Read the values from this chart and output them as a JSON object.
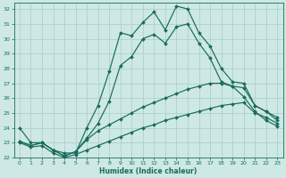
{
  "xlabel": "Humidex (Indice chaleur)",
  "background_color": "#cde8e5",
  "grid_color": "#a8ccc9",
  "line_color": "#1a6b5a",
  "xlim": [
    -0.5,
    23.5
  ],
  "ylim": [
    22,
    32.4
  ],
  "xticks": [
    0,
    1,
    2,
    3,
    4,
    5,
    6,
    7,
    8,
    9,
    10,
    11,
    12,
    13,
    14,
    15,
    16,
    17,
    18,
    19,
    20,
    21,
    22,
    23
  ],
  "yticks": [
    22,
    23,
    24,
    25,
    26,
    27,
    28,
    29,
    30,
    31,
    32
  ],
  "line1_x": [
    0,
    1,
    2,
    3,
    4,
    5,
    6,
    7,
    8,
    9,
    10,
    11,
    12,
    13,
    14,
    15,
    16,
    17,
    18,
    19,
    20,
    21,
    22,
    23
  ],
  "line1_y": [
    24.0,
    23.0,
    23.0,
    22.5,
    22.3,
    22.3,
    24.0,
    25.5,
    27.8,
    30.4,
    30.2,
    31.1,
    31.8,
    30.6,
    32.2,
    32.0,
    30.4,
    29.5,
    28.0,
    27.1,
    27.0,
    25.5,
    25.1,
    24.5
  ],
  "line2_x": [
    0,
    1,
    2,
    3,
    4,
    5,
    6,
    7,
    8,
    9,
    10,
    11,
    12,
    13,
    14,
    15,
    16,
    17,
    18,
    19,
    20,
    21,
    22,
    23
  ],
  "line2_y": [
    23.1,
    22.8,
    23.0,
    22.5,
    22.1,
    22.4,
    23.3,
    24.3,
    25.8,
    28.2,
    28.8,
    30.0,
    30.3,
    29.7,
    30.8,
    31.0,
    29.7,
    28.7,
    27.1,
    26.8,
    26.1,
    25.1,
    24.5,
    24.1
  ],
  "line3_x": [
    0,
    1,
    2,
    3,
    4,
    5,
    6,
    7,
    8,
    9,
    10,
    11,
    12,
    13,
    14,
    15,
    16,
    17,
    18,
    19,
    20,
    21,
    22,
    23
  ],
  "line3_y": [
    23.1,
    22.8,
    23.0,
    22.5,
    22.1,
    22.4,
    23.2,
    23.8,
    24.2,
    24.6,
    25.0,
    25.4,
    25.7,
    26.0,
    26.3,
    26.6,
    26.8,
    27.0,
    27.0,
    26.8,
    26.7,
    25.5,
    25.1,
    24.7
  ],
  "line4_x": [
    0,
    1,
    2,
    3,
    4,
    5,
    6,
    7,
    8,
    9,
    10,
    11,
    12,
    13,
    14,
    15,
    16,
    17,
    18,
    19,
    20,
    21,
    22,
    23
  ],
  "line4_y": [
    23.0,
    22.7,
    22.8,
    22.3,
    22.0,
    22.2,
    22.5,
    22.8,
    23.1,
    23.4,
    23.7,
    24.0,
    24.2,
    24.5,
    24.7,
    24.9,
    25.1,
    25.3,
    25.5,
    25.6,
    25.7,
    25.0,
    24.7,
    24.3
  ]
}
